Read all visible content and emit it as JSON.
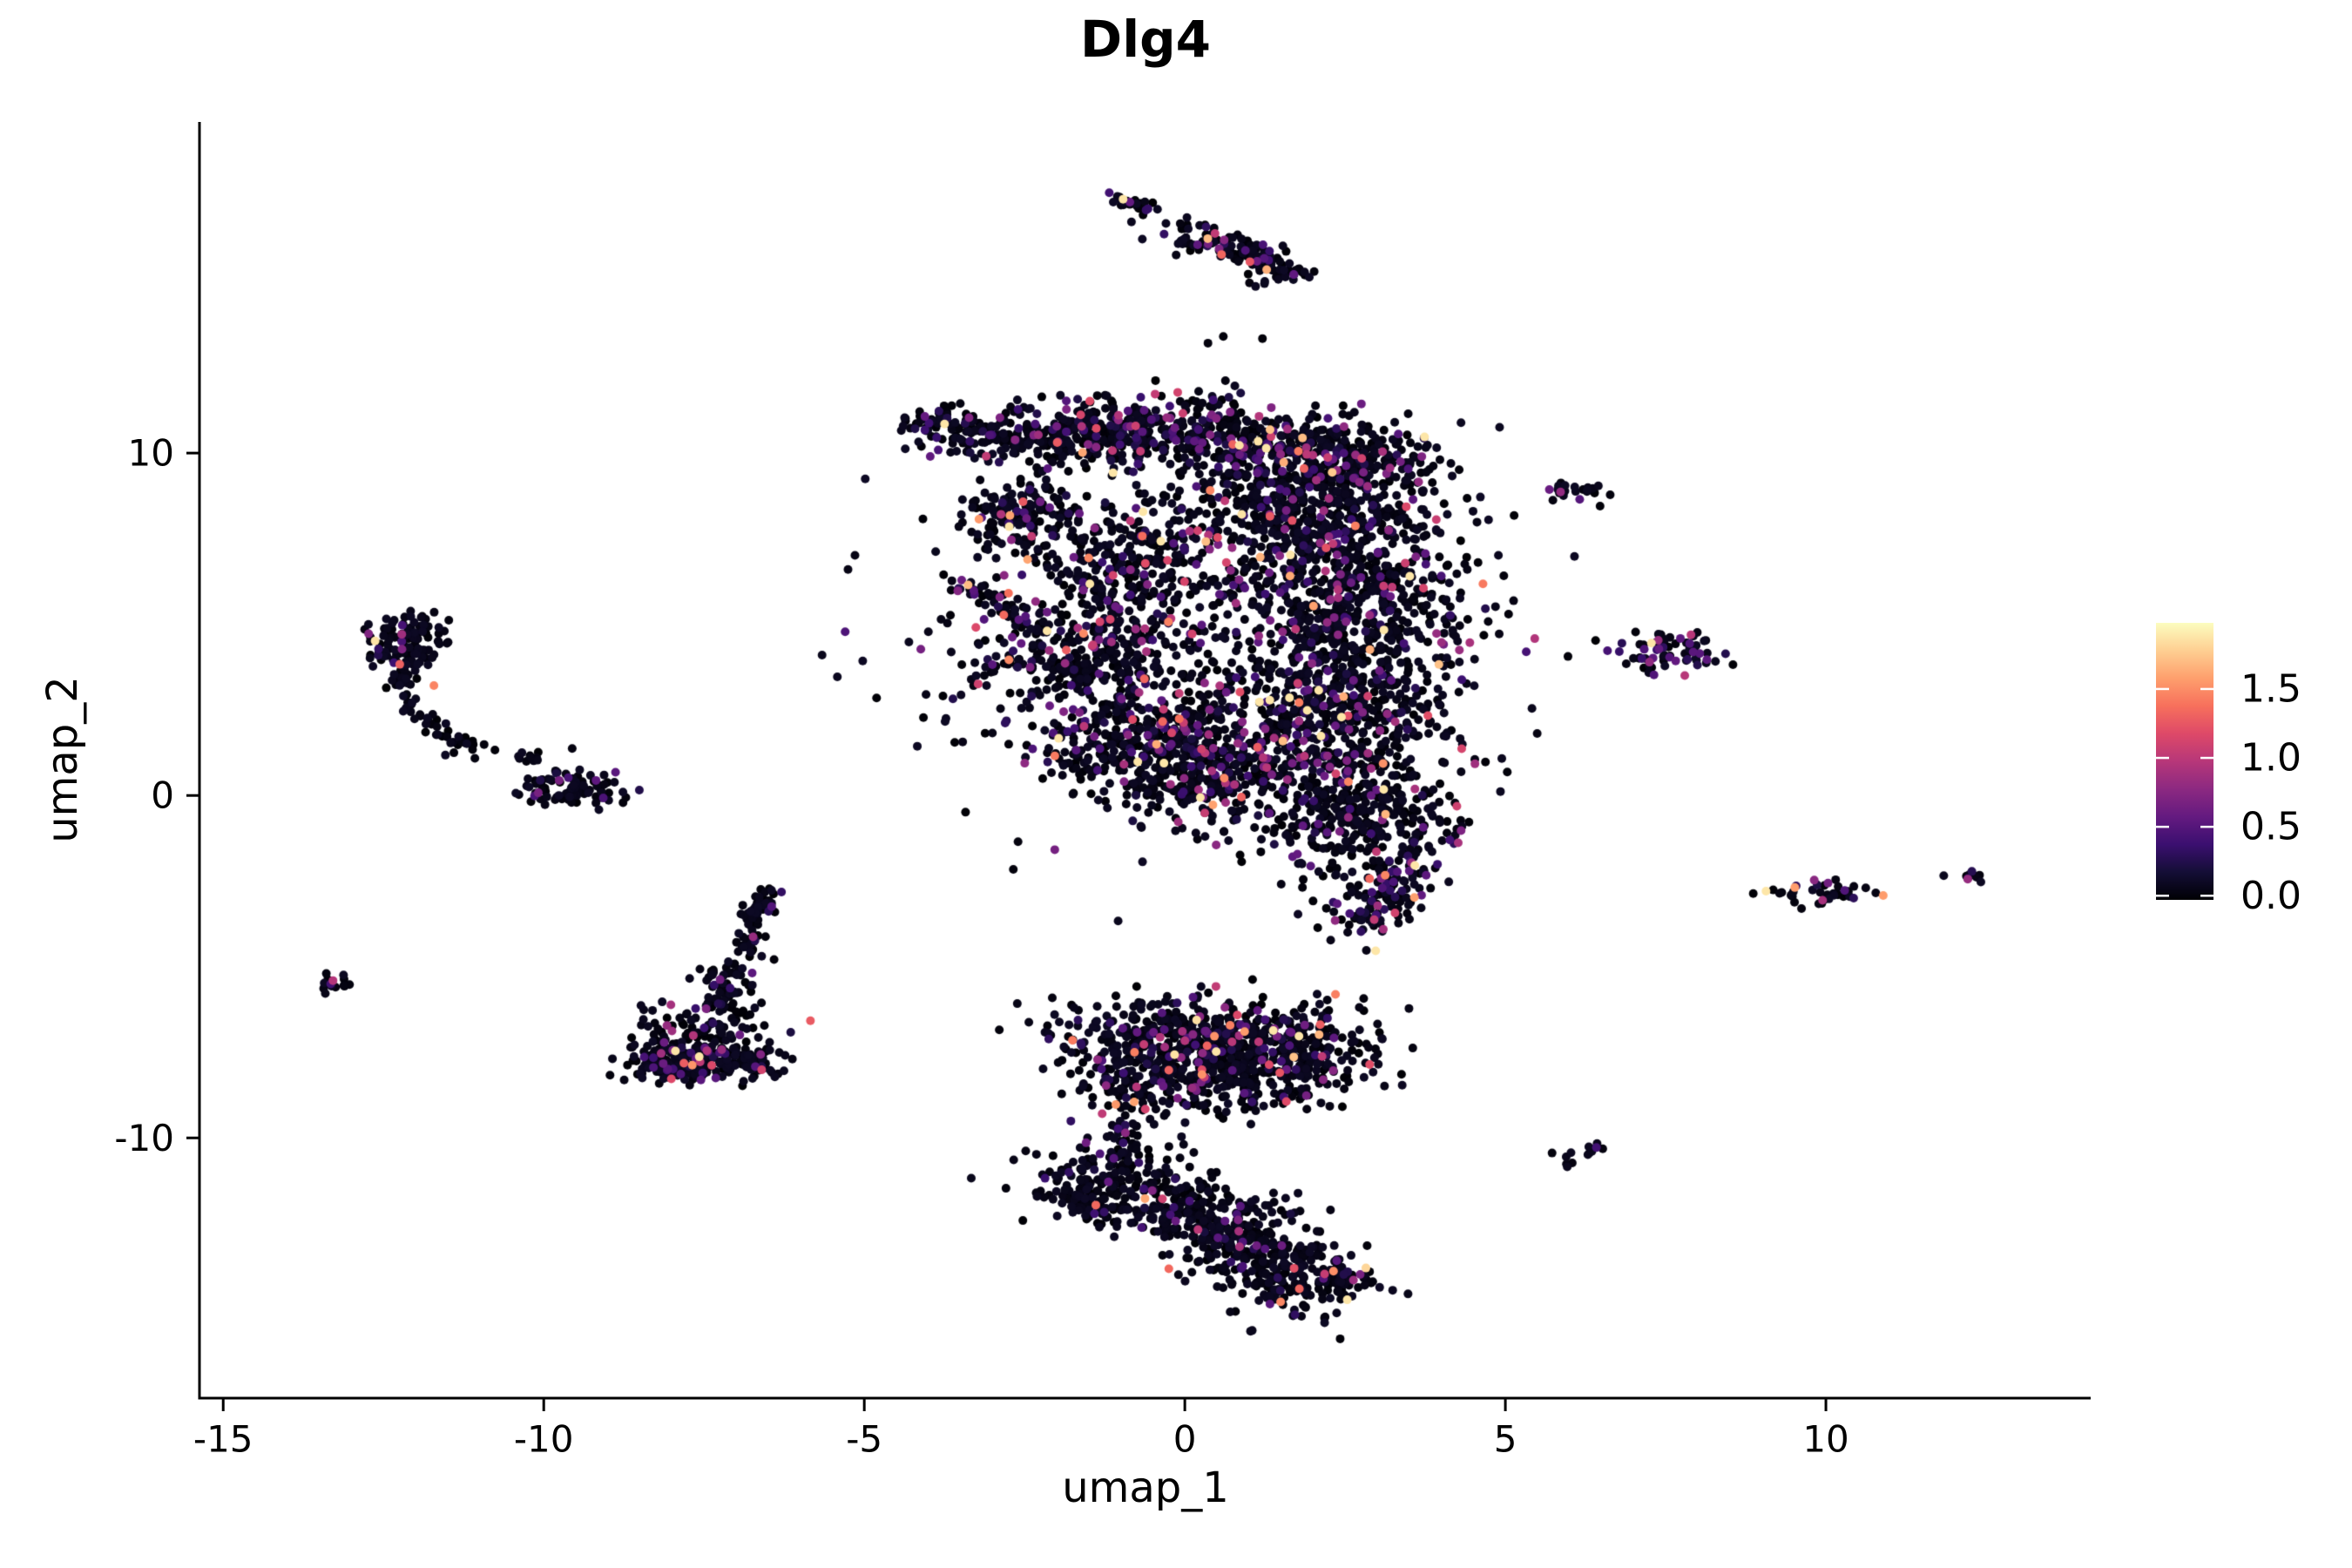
{
  "title": "Dlg4",
  "x_axis_label": "umap_1",
  "y_axis_label": "umap_2",
  "colors": {
    "background": "#ffffff",
    "axis": "#000000",
    "text": "#000000",
    "legend_tick_mark": "#ffffff",
    "low_expression_point": "#0a0722",
    "high_expression_point": "#fcfdbf"
  },
  "legend": {
    "tick_labels": [
      "1.5",
      "1.0",
      "0.5",
      "0.0"
    ],
    "tick_values": [
      1.5,
      1.0,
      0.5,
      0.0
    ],
    "bar_domain": [
      -0.03,
      1.98
    ],
    "colormap": "magma",
    "colormap_stops": [
      [
        0.0,
        "#000004"
      ],
      [
        0.1,
        "#140e36"
      ],
      [
        0.2,
        "#3b0f70"
      ],
      [
        0.3,
        "#641a80"
      ],
      [
        0.4,
        "#8c2981"
      ],
      [
        0.5,
        "#b73779"
      ],
      [
        0.6,
        "#de4968"
      ],
      [
        0.7,
        "#f7705c"
      ],
      [
        0.8,
        "#fe9f6d"
      ],
      [
        0.9,
        "#fecf92"
      ],
      [
        1.0,
        "#fcfdbf"
      ]
    ]
  },
  "chart_data": {
    "type": "scatter",
    "title": "Dlg4",
    "xlabel": "umap_1",
    "ylabel": "umap_2",
    "xlim": [
      -15.37,
      14.13
    ],
    "ylim": [
      -17.6,
      19.67
    ],
    "x_ticks": [
      -15,
      -10,
      -5,
      0,
      5,
      10
    ],
    "y_ticks": [
      -10,
      0,
      10
    ],
    "grid": false,
    "legend_position": "right",
    "point_radius_px": 5,
    "color_scale": {
      "name": "magma",
      "value_min": 0.0,
      "value_max": 2.0
    },
    "clusters": [
      {
        "name": "top-streak",
        "kind": "band",
        "points": [
          [
            -1.05,
            17.45
          ],
          [
            -0.6,
            17.15
          ]
        ],
        "sd": 0.09,
        "n": 30,
        "colored_frac": 0.08
      },
      {
        "name": "top-sparse-trail",
        "kind": "gauss",
        "center": [
          -0.25,
          16.75
        ],
        "sd": [
          0.35,
          0.25
        ],
        "n": 7,
        "colored_frac": 0
      },
      {
        "name": "top-clump",
        "kind": "band",
        "points": [
          [
            0.0,
            16.35
          ],
          [
            0.9,
            15.9
          ],
          [
            1.3,
            15.55
          ],
          [
            1.55,
            15.2
          ]
        ],
        "sd": 0.22,
        "n": 150,
        "colored_frac": 0.1
      },
      {
        "name": "central-topleft-arm",
        "kind": "band",
        "points": [
          [
            -4.15,
            11.0
          ],
          [
            -3.4,
            10.55
          ],
          [
            -2.5,
            10.35
          ]
        ],
        "sd": 0.28,
        "n": 140,
        "colored_frac": 0.15
      },
      {
        "name": "central-top-band",
        "kind": "band",
        "points": [
          [
            -2.5,
            10.4
          ],
          [
            -1.2,
            10.7
          ],
          [
            0.3,
            10.6
          ],
          [
            1.8,
            10.15
          ],
          [
            3.3,
            9.7
          ]
        ],
        "sd": 0.5,
        "n": 750,
        "colored_frac": 0.2
      },
      {
        "name": "central-left-patch",
        "kind": "gauss",
        "center": [
          -2.55,
          8.1
        ],
        "sd": [
          0.45,
          0.55
        ],
        "n": 160,
        "colored_frac": 0.15
      },
      {
        "name": "central-diagonal-streak",
        "kind": "band",
        "points": [
          [
            -3.75,
            6.3
          ],
          [
            -2.4,
            5.3
          ]
        ],
        "sd": 0.18,
        "n": 50,
        "colored_frac": 0.12
      },
      {
        "name": "central-mid-left-1",
        "kind": "gauss",
        "center": [
          -0.75,
          6.6
        ],
        "sd": [
          0.75,
          0.85
        ],
        "n": 240,
        "colored_frac": 0.16
      },
      {
        "name": "central-mid-left-2",
        "kind": "gauss",
        "center": [
          -1.6,
          3.9
        ],
        "sd": [
          0.8,
          0.9
        ],
        "n": 280,
        "colored_frac": 0.17
      },
      {
        "name": "central-lower-left-1",
        "kind": "gauss",
        "center": [
          -0.8,
          1.6
        ],
        "sd": [
          0.9,
          0.75
        ],
        "n": 300,
        "colored_frac": 0.18
      },
      {
        "name": "central-lower-left-2",
        "kind": "gauss",
        "center": [
          0.4,
          0.5
        ],
        "sd": [
          0.85,
          0.7
        ],
        "n": 280,
        "colored_frac": 0.18
      },
      {
        "name": "central-right-upper",
        "kind": "gauss",
        "center": [
          1.9,
          8.4
        ],
        "sd": [
          1.0,
          0.85
        ],
        "n": 480,
        "colored_frac": 0.17
      },
      {
        "name": "central-right-mid",
        "kind": "gauss",
        "center": [
          2.7,
          5.6
        ],
        "sd": [
          0.85,
          1.2
        ],
        "n": 520,
        "colored_frac": 0.16
      },
      {
        "name": "central-right-lower",
        "kind": "gauss",
        "center": [
          2.1,
          2.6
        ],
        "sd": [
          1.05,
          1.1
        ],
        "n": 500,
        "colored_frac": 0.17
      },
      {
        "name": "central-bottom-mass",
        "kind": "gauss",
        "center": [
          2.8,
          -0.4
        ],
        "sd": [
          0.75,
          0.95
        ],
        "n": 380,
        "colored_frac": 0.16
      },
      {
        "name": "central-bottom-curl",
        "kind": "band",
        "points": [
          [
            3.3,
            -1.8
          ],
          [
            3.1,
            -3.2
          ],
          [
            2.6,
            -3.9
          ]
        ],
        "sd": 0.3,
        "n": 130,
        "colored_frac": 0.25
      },
      {
        "name": "central-sparse-fill",
        "kind": "gauss",
        "center": [
          0.2,
          5.3
        ],
        "sd": [
          2.3,
          3.1
        ],
        "n": 420,
        "colored_frac": 0.14
      },
      {
        "name": "left-hook-blob",
        "kind": "gauss",
        "center": [
          -12.15,
          4.4
        ],
        "sd": [
          0.33,
          0.5
        ],
        "n": 130,
        "colored_frac": 0.07
      },
      {
        "name": "left-hook-arc",
        "kind": "band",
        "points": [
          [
            -12.3,
            3.6
          ],
          [
            -12.05,
            2.5
          ],
          [
            -11.5,
            1.6
          ],
          [
            -10.85,
            1.3
          ]
        ],
        "sd": 0.14,
        "n": 60,
        "colored_frac": 0.05
      },
      {
        "name": "left-hook-trail",
        "kind": "band",
        "points": [
          [
            -10.5,
            1.2
          ],
          [
            -10.1,
            1.05
          ]
        ],
        "sd": 0.07,
        "n": 7,
        "colored_frac": 0
      },
      {
        "name": "left-scatter-singles",
        "kind": "gauss",
        "center": [
          -10.05,
          0.8
        ],
        "sd": [
          0.3,
          0.35
        ],
        "n": 8,
        "colored_frac": 0
      },
      {
        "name": "left-small-cluster",
        "kind": "gauss",
        "center": [
          -9.55,
          0.15
        ],
        "sd": [
          0.45,
          0.25
        ],
        "n": 85,
        "colored_frac": 0.08
      },
      {
        "name": "far-left-tiny",
        "kind": "gauss",
        "center": [
          -13.35,
          -5.5
        ],
        "sd": [
          0.17,
          0.13
        ],
        "n": 16,
        "colored_frac": 0.15
      },
      {
        "name": "triangle-base",
        "kind": "band",
        "points": [
          [
            -8.55,
            -7.75
          ],
          [
            -6.6,
            -7.85
          ]
        ],
        "sd": 0.28,
        "n": 260,
        "colored_frac": 0.12
      },
      {
        "name": "triangle-body",
        "kind": "gauss",
        "center": [
          -7.5,
          -7.0
        ],
        "sd": [
          0.5,
          0.45
        ],
        "n": 120,
        "colored_frac": 0.1
      },
      {
        "name": "triangle-neck",
        "kind": "band",
        "points": [
          [
            -7.3,
            -6.2
          ],
          [
            -6.95,
            -4.9
          ]
        ],
        "sd": 0.22,
        "n": 70,
        "colored_frac": 0.08
      },
      {
        "name": "triangle-tail",
        "kind": "band",
        "points": [
          [
            -6.85,
            -4.6
          ],
          [
            -6.75,
            -3.6
          ],
          [
            -6.45,
            -2.65
          ]
        ],
        "sd": 0.12,
        "n": 60,
        "colored_frac": 0.05
      },
      {
        "name": "bottom-upper-left",
        "kind": "gauss",
        "center": [
          0.1,
          -6.9
        ],
        "sd": [
          1.05,
          0.5
        ],
        "n": 300,
        "colored_frac": 0.13
      },
      {
        "name": "bottom-upper-mid",
        "kind": "gauss",
        "center": [
          -0.2,
          -8.1
        ],
        "sd": [
          0.95,
          0.6
        ],
        "n": 330,
        "colored_frac": 0.13
      },
      {
        "name": "bottom-upper-right",
        "kind": "gauss",
        "center": [
          1.45,
          -7.6
        ],
        "sd": [
          0.8,
          0.75
        ],
        "n": 330,
        "colored_frac": 0.13
      },
      {
        "name": "bottom-upper-tail",
        "kind": "band",
        "points": [
          [
            -1.05,
            -9.1
          ],
          [
            -0.85,
            -10.3
          ],
          [
            -1.0,
            -10.6
          ]
        ],
        "sd": 0.16,
        "n": 40,
        "colored_frac": 0.05
      },
      {
        "name": "bottom-lower-crescent",
        "kind": "band",
        "points": [
          [
            -1.6,
            -10.9
          ],
          [
            -0.7,
            -11.5
          ],
          [
            0.3,
            -12.4
          ],
          [
            1.3,
            -13.4
          ],
          [
            2.1,
            -14.7
          ]
        ],
        "sd": 0.55,
        "n": 650,
        "colored_frac": 0.08
      },
      {
        "name": "bottom-lower-tip",
        "kind": "gauss",
        "center": [
          -1.55,
          -11.9
        ],
        "sd": [
          0.3,
          0.35
        ],
        "n": 70,
        "colored_frac": 0.06
      },
      {
        "name": "bottom-lower-right-tail",
        "kind": "gauss",
        "center": [
          2.4,
          -14.1
        ],
        "sd": [
          0.3,
          0.2
        ],
        "n": 45,
        "colored_frac": 0.06
      },
      {
        "name": "right-small-top",
        "kind": "gauss",
        "center": [
          6.1,
          8.9
        ],
        "sd": [
          0.22,
          0.12
        ],
        "n": 24,
        "colored_frac": 0.12
      },
      {
        "name": "right-small-mid",
        "kind": "gauss",
        "center": [
          7.5,
          4.2
        ],
        "sd": [
          0.5,
          0.28
        ],
        "n": 70,
        "colored_frac": 0.38
      },
      {
        "name": "right-small-low",
        "kind": "gauss",
        "center": [
          9.9,
          -2.9
        ],
        "sd": [
          0.42,
          0.2
        ],
        "n": 42,
        "colored_frac": 0.3
      },
      {
        "name": "right-lone-dot",
        "kind": "gauss",
        "center": [
          11.8,
          -2.3
        ],
        "sd": [
          0.03,
          0.03
        ],
        "n": 1,
        "colored_frac": 0
      },
      {
        "name": "far-right-pair",
        "kind": "gauss",
        "center": [
          12.35,
          -2.35
        ],
        "sd": [
          0.14,
          0.08
        ],
        "n": 9,
        "colored_frac": 0.3
      },
      {
        "name": "right-low-streak",
        "kind": "band",
        "points": [
          [
            5.9,
            -10.8
          ],
          [
            6.45,
            -10.25
          ]
        ],
        "sd": 0.08,
        "n": 13,
        "colored_frac": 0.15
      },
      {
        "name": "right-low-lone-dot",
        "kind": "gauss",
        "center": [
          5.7,
          -10.45
        ],
        "sd": [
          0.02,
          0.02
        ],
        "n": 1,
        "colored_frac": 0
      }
    ]
  }
}
